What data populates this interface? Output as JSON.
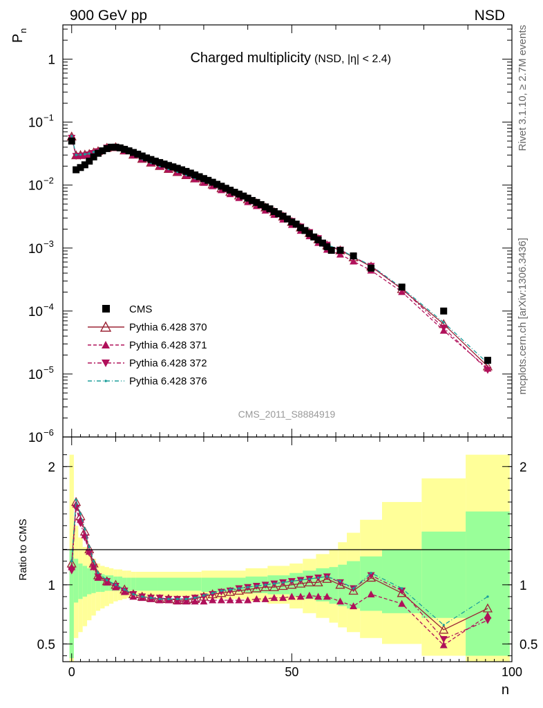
{
  "header": {
    "energy_label": "900 GeV pp",
    "process_label": "NSD"
  },
  "side_labels": {
    "rivet": "Rivet 3.1.10, ≥ 2.7M events",
    "mcplots": "mcplots.cern.ch [arXiv:1306.3436]"
  },
  "chart_data": {
    "type": "line",
    "title": "Charged multiplicity",
    "subtitle": "(NSD, |η| < 2.4)",
    "analysis_label": "CMS_2011_S8884919",
    "xlabel": "n",
    "ylabel_main": "P",
    "ylabel_main_sub": "n",
    "ylabel_ratio": "Ratio to CMS",
    "xlim": [
      -2,
      100
    ],
    "ylim_main": [
      1e-06,
      3.5
    ],
    "yscale_main": "log",
    "ylim_ratio": [
      0.35,
      2.25
    ],
    "x_ticks": [
      "0",
      "50",
      "100"
    ],
    "y_ticks_main": [
      {
        "base": "1",
        "exp": ""
      },
      {
        "base": "10",
        "exp": "−1"
      },
      {
        "base": "10",
        "exp": "−2"
      },
      {
        "base": "10",
        "exp": "−3"
      },
      {
        "base": "10",
        "exp": "−4"
      },
      {
        "base": "10",
        "exp": "−5"
      },
      {
        "base": "10",
        "exp": "−6"
      }
    ],
    "y_tick_values_main": [
      1,
      0.1,
      0.01,
      0.001,
      0.0001,
      1e-05,
      1e-06
    ],
    "y_ticks_ratio": [
      "2",
      "1",
      "0.5"
    ],
    "y_tick_values_ratio": [
      2,
      1,
      0.5
    ],
    "legend_position": "bottom-left",
    "legend": [
      "CMS",
      "Pythia 6.428 370",
      "Pythia 6.428 371",
      "Pythia 6.428 372",
      "Pythia 6.428 376"
    ],
    "colors": {
      "data": "#000000",
      "p370": "#9b2335",
      "p371": "#b0105a",
      "p372": "#b0105a",
      "p376": "#1a9e9a",
      "band_inner": "#99ff99",
      "band_outer": "#ffff99"
    },
    "cms": {
      "x": [
        0,
        1,
        2,
        3,
        4,
        5,
        6,
        7,
        8,
        9,
        10,
        11,
        12,
        13,
        14,
        15,
        16,
        17,
        18,
        19,
        20,
        21,
        22,
        23,
        24,
        25,
        26,
        27,
        28,
        29,
        30,
        31,
        32,
        33,
        34,
        35,
        36,
        37,
        38,
        39,
        40,
        41,
        42,
        43,
        44,
        45,
        46,
        47,
        48,
        49,
        50,
        51,
        52,
        53,
        54,
        55,
        56,
        57,
        58,
        59,
        61,
        64,
        68,
        75,
        84.5,
        94.5
      ],
      "y": [
        0.05,
        0.0175,
        0.019,
        0.021,
        0.024,
        0.028,
        0.032,
        0.035,
        0.038,
        0.04,
        0.04,
        0.039,
        0.037,
        0.035,
        0.033,
        0.031,
        0.029,
        0.027,
        0.0255,
        0.024,
        0.0228,
        0.0216,
        0.0205,
        0.0195,
        0.0185,
        0.0175,
        0.0165,
        0.0155,
        0.0145,
        0.0136,
        0.0127,
        0.0119,
        0.0111,
        0.0103,
        0.0096,
        0.0089,
        0.0083,
        0.0077,
        0.0072,
        0.0067,
        0.0062,
        0.0057,
        0.0053,
        0.0049,
        0.0045,
        0.0042,
        0.0038,
        0.0035,
        0.0032,
        0.0029,
        0.0026,
        0.0024,
        0.0021,
        0.0019,
        0.0017,
        0.0015,
        0.00135,
        0.0012,
        0.00105,
        0.00092,
        0.00092,
        0.00075,
        0.00048,
        0.00024,
        0.0001,
        1.65e-05
      ]
    },
    "series": [
      {
        "name": "Pythia 6.428 370",
        "x": [
          0,
          1,
          2,
          3,
          4,
          5,
          6,
          8,
          10,
          12,
          14,
          16,
          18,
          20,
          22,
          24,
          26,
          28,
          30,
          32,
          34,
          36,
          38,
          40,
          42,
          44,
          46,
          48,
          50,
          52,
          54,
          56,
          58,
          61,
          64,
          68,
          75,
          84.5,
          94.5
        ],
        "ratio": [
          1.18,
          1.7,
          1.58,
          1.45,
          1.3,
          1.18,
          1.08,
          1.03,
          1.0,
          0.96,
          0.92,
          0.9,
          0.89,
          0.88,
          0.88,
          0.87,
          0.87,
          0.88,
          0.9,
          0.92,
          0.93,
          0.94,
          0.95,
          0.96,
          0.97,
          0.98,
          0.98,
          0.99,
          1.0,
          1.01,
          1.02,
          1.02,
          1.05,
          1.0,
          0.95,
          1.06,
          0.93,
          0.62,
          0.8
        ]
      },
      {
        "name": "Pythia 6.428 371",
        "x": [
          0,
          1,
          2,
          3,
          4,
          5,
          6,
          8,
          10,
          12,
          14,
          16,
          18,
          20,
          22,
          24,
          26,
          28,
          30,
          32,
          34,
          36,
          38,
          40,
          42,
          44,
          46,
          48,
          50,
          52,
          54,
          56,
          58,
          61,
          64,
          68,
          75,
          84.5,
          94.5
        ],
        "ratio": [
          1.15,
          1.68,
          1.55,
          1.42,
          1.28,
          1.15,
          1.06,
          1.02,
          0.98,
          0.94,
          0.9,
          0.89,
          0.88,
          0.87,
          0.87,
          0.86,
          0.86,
          0.86,
          0.86,
          0.87,
          0.87,
          0.87,
          0.87,
          0.87,
          0.88,
          0.88,
          0.89,
          0.89,
          0.9,
          0.9,
          0.91,
          0.9,
          0.9,
          0.86,
          0.82,
          0.92,
          0.84,
          0.49,
          0.74
        ]
      },
      {
        "name": "Pythia 6.428 372",
        "x": [
          0,
          1,
          2,
          3,
          4,
          5,
          6,
          8,
          10,
          12,
          14,
          16,
          18,
          20,
          22,
          24,
          26,
          28,
          30,
          32,
          34,
          36,
          38,
          40,
          42,
          44,
          46,
          48,
          50,
          52,
          54,
          56,
          58,
          61,
          64,
          68,
          75,
          84.5,
          94.5
        ],
        "ratio": [
          1.12,
          1.65,
          1.52,
          1.4,
          1.27,
          1.15,
          1.07,
          1.03,
          0.99,
          0.95,
          0.92,
          0.9,
          0.89,
          0.89,
          0.88,
          0.88,
          0.88,
          0.89,
          0.9,
          0.92,
          0.94,
          0.95,
          0.97,
          0.98,
          0.99,
          1.0,
          1.01,
          1.02,
          1.03,
          1.04,
          1.05,
          1.06,
          1.07,
          1.02,
          0.97,
          1.08,
          0.95,
          0.54,
          0.7
        ]
      },
      {
        "name": "Pythia 6.428 376",
        "x": [
          0,
          1,
          2,
          3,
          4,
          5,
          6,
          8,
          10,
          12,
          14,
          16,
          18,
          20,
          22,
          24,
          26,
          28,
          30,
          32,
          34,
          36,
          38,
          40,
          42,
          44,
          46,
          48,
          50,
          52,
          54,
          56,
          58,
          61,
          64,
          68,
          75,
          84.5,
          94.5
        ],
        "ratio": [
          1.2,
          1.72,
          1.6,
          1.47,
          1.32,
          1.2,
          1.1,
          1.04,
          1.0,
          0.96,
          0.92,
          0.9,
          0.89,
          0.88,
          0.88,
          0.88,
          0.88,
          0.89,
          0.91,
          0.93,
          0.95,
          0.96,
          0.97,
          0.98,
          0.99,
          1.0,
          1.01,
          1.02,
          1.03,
          1.04,
          1.05,
          1.06,
          1.07,
          1.03,
          0.97,
          1.1,
          0.97,
          0.66,
          0.9
        ]
      }
    ],
    "cms_error_bands": {
      "x_edges": [
        -0.5,
        0.5,
        1.5,
        2.5,
        3.5,
        4.5,
        5.5,
        6.5,
        7.5,
        8.5,
        9.5,
        10.5,
        11.5,
        12.5,
        13.5,
        14.5,
        19.5,
        29.5,
        39.5,
        44.5,
        49.5,
        52.5,
        55.5,
        58.5,
        60.5,
        62.5,
        65.5,
        70.5,
        79.5,
        89.5,
        99.5
      ],
      "inner_lo": [
        0.38,
        0.85,
        0.88,
        0.9,
        0.92,
        0.93,
        0.94,
        0.94,
        0.95,
        0.95,
        0.95,
        0.95,
        0.95,
        0.95,
        0.95,
        0.95,
        0.95,
        0.94,
        0.93,
        0.92,
        0.9,
        0.88,
        0.86,
        0.84,
        0.82,
        0.8,
        0.78,
        0.76,
        0.72,
        0.4
      ],
      "inner_hi": [
        1.3,
        1.22,
        1.18,
        1.16,
        1.14,
        1.12,
        1.1,
        1.09,
        1.08,
        1.08,
        1.07,
        1.07,
        1.06,
        1.06,
        1.06,
        1.06,
        1.06,
        1.06,
        1.07,
        1.08,
        1.1,
        1.12,
        1.14,
        1.15,
        1.17,
        1.2,
        1.24,
        1.3,
        1.45,
        1.62
      ],
      "outer_lo": [
        0.35,
        0.55,
        0.6,
        0.65,
        0.7,
        0.74,
        0.78,
        0.8,
        0.82,
        0.84,
        0.86,
        0.87,
        0.88,
        0.89,
        0.9,
        0.9,
        0.9,
        0.88,
        0.86,
        0.84,
        0.8,
        0.76,
        0.72,
        0.68,
        0.64,
        0.6,
        0.55,
        0.5,
        0.4,
        0.35
      ],
      "outer_hi": [
        2.1,
        1.5,
        1.4,
        1.32,
        1.26,
        1.22,
        1.18,
        1.16,
        1.15,
        1.14,
        1.13,
        1.13,
        1.12,
        1.12,
        1.11,
        1.11,
        1.11,
        1.12,
        1.14,
        1.16,
        1.18,
        1.22,
        1.26,
        1.3,
        1.36,
        1.44,
        1.55,
        1.7,
        1.9,
        2.1
      ]
    }
  }
}
